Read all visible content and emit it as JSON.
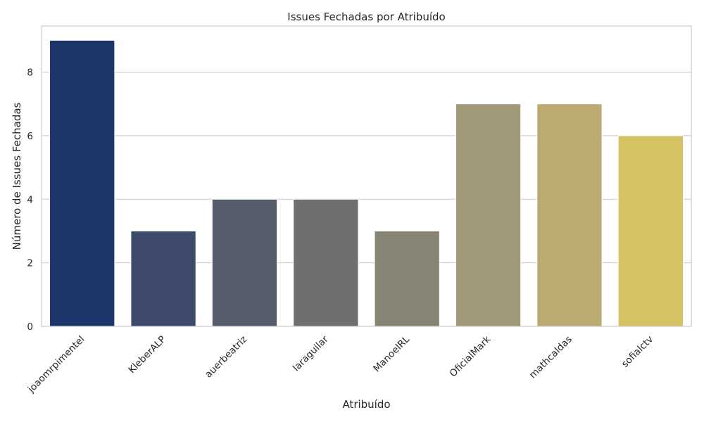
{
  "chart_data": {
    "type": "bar",
    "title": "Issues Fechadas por Atribuído",
    "xlabel": "Atribuído",
    "ylabel": "Número de Issues Fechadas",
    "categories": [
      "joaomrpimentel",
      "KleberALP",
      "auerbeatriz",
      "laraguilar",
      "ManoelRL",
      "OficialMark",
      "mathcaldas",
      "sofialctv"
    ],
    "values": [
      9,
      3,
      4,
      4,
      3,
      7,
      7,
      6
    ],
    "colors": [
      "#1c366a",
      "#3d4a6b",
      "#575c6d",
      "#6f6f71",
      "#878375",
      "#a09877",
      "#bbab72",
      "#d5c264"
    ],
    "ylim": [
      0,
      9.45
    ],
    "yticks": [
      0,
      2,
      4,
      6,
      8
    ],
    "grid": true,
    "grid_axis": "y",
    "grid_color": "#cccccc",
    "spine_color": "#cccccc",
    "xtick_rotation": -45
  }
}
